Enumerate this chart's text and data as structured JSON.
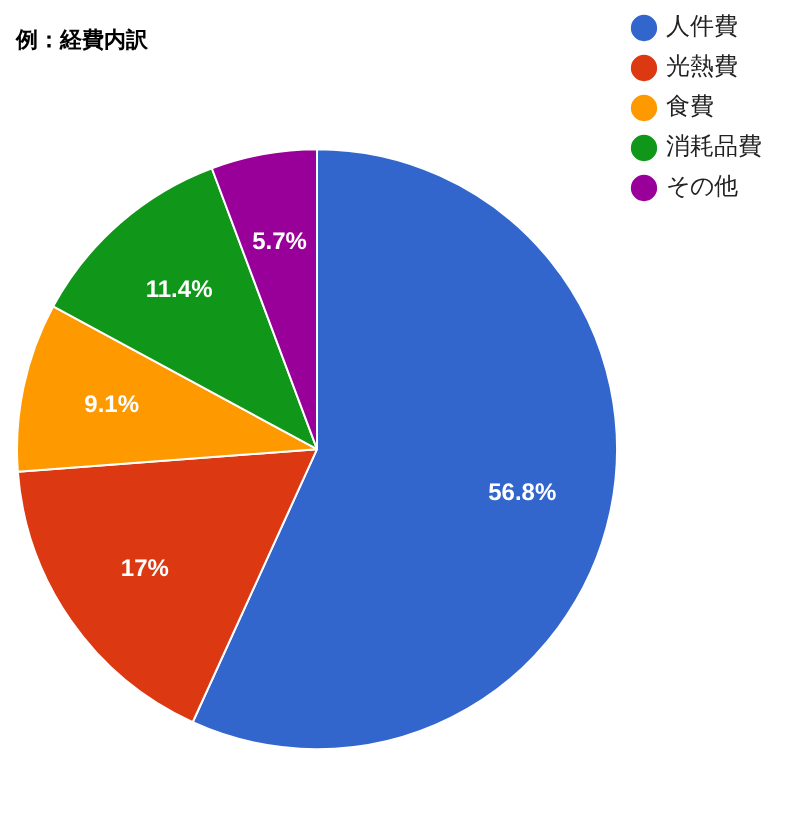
{
  "chart_data": {
    "type": "pie",
    "title": "例：経費内訳",
    "categories": [
      "人件費",
      "光熱費",
      "食費",
      "消耗品費",
      "その他"
    ],
    "values": [
      56.8,
      17,
      9.1,
      11.4,
      5.7
    ],
    "colors": [
      "#3366cc",
      "#dc3912",
      "#ff9900",
      "#109618",
      "#990099"
    ],
    "value_labels": [
      "56.8%",
      "17%",
      "9.1%",
      "11.4%",
      "5.7%"
    ],
    "legend": "top right"
  }
}
